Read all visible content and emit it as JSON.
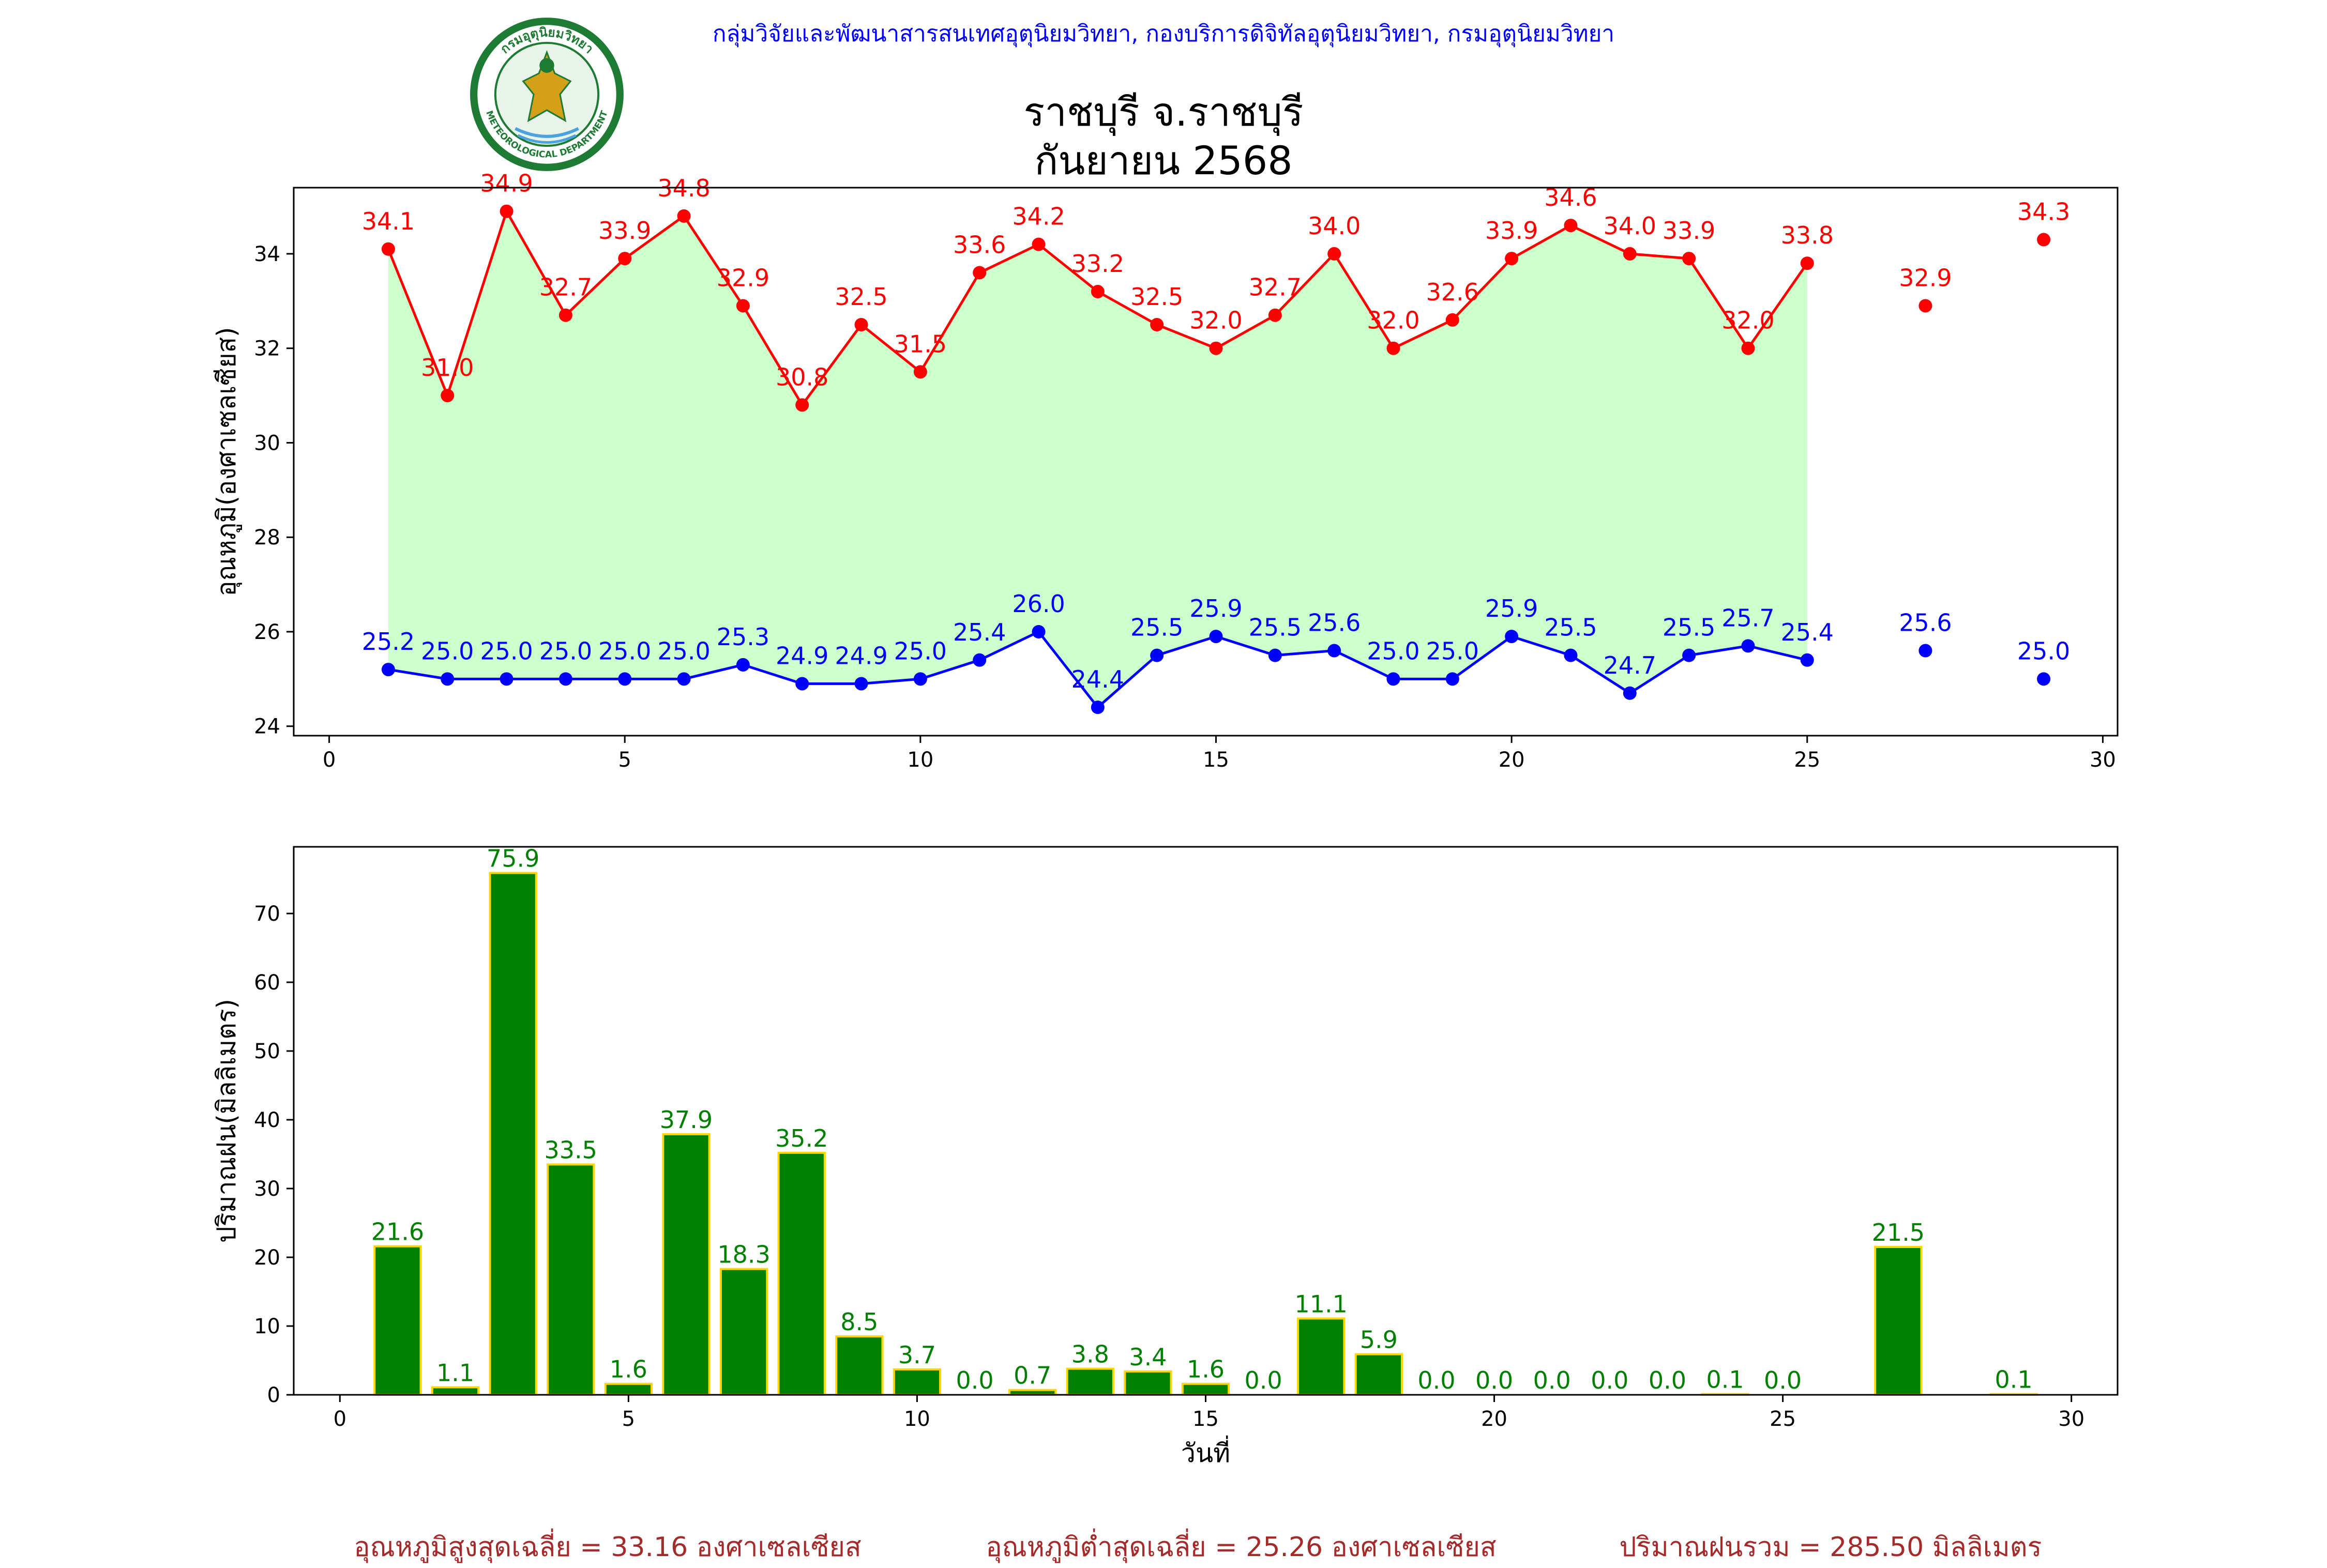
{
  "header": {
    "text": "กลุ่มวิจัยและพัฒนาสารสนเทศอุตุนิยมวิทยา, กองบริการดิจิทัลอุตุนิยมวิทยา, กรมอุตุนิยมวิทยา"
  },
  "logo": {
    "top_text": "กรมอุตุนิยมวิทยา",
    "bottom_text": "METEOROLOGICAL DEPARTMENT",
    "colors": {
      "ring": "#1e7b34",
      "inner": "#e8f4ea",
      "figure": "#d4a017"
    }
  },
  "title": {
    "line1": "ราชบุรี จ.ราชบุรี",
    "line2": "กันยายน 2568"
  },
  "footer": {
    "avg_max": "อุณหภูมิสูงสุดเฉลี่ย = 33.16 องศาเซลเซียส",
    "avg_min": "อุณหภูมิต่ำสุดเฉลี่ย = 25.26 องศาเซลเซียส",
    "total_rain": "ปริมาณฝนรวม = 285.50 มิลลิเมตร"
  },
  "chart_data": [
    {
      "type": "line",
      "ylabel": "อุณหภูมิ(องศาเซลเซียส)",
      "xlabel": "",
      "xlim": [
        -0.6,
        30.25
      ],
      "ylim": [
        23.8,
        35.4
      ],
      "xticks": [
        0,
        5,
        10,
        15,
        20,
        25,
        30
      ],
      "yticks": [
        24,
        26,
        28,
        30,
        32,
        34
      ],
      "fill_between": true,
      "series": [
        {
          "key": "max",
          "color": "#ff0000",
          "x": [
            1,
            2,
            3,
            4,
            5,
            6,
            7,
            8,
            9,
            10,
            11,
            12,
            13,
            14,
            15,
            16,
            17,
            18,
            19,
            20,
            21,
            22,
            23,
            24,
            25,
            27,
            29
          ],
          "values": [
            34.1,
            31.0,
            34.9,
            32.7,
            33.9,
            34.8,
            32.9,
            30.8,
            32.5,
            31.5,
            33.6,
            34.2,
            33.2,
            32.5,
            32.0,
            32.7,
            34.0,
            32.0,
            32.6,
            33.9,
            34.6,
            34.0,
            33.9,
            32.0,
            33.8,
            32.9,
            34.3
          ]
        },
        {
          "key": "min",
          "color": "#0000ff",
          "x": [
            1,
            2,
            3,
            4,
            5,
            6,
            7,
            8,
            9,
            10,
            11,
            12,
            13,
            14,
            15,
            16,
            17,
            18,
            19,
            20,
            21,
            22,
            23,
            24,
            25,
            27,
            29
          ],
          "values": [
            25.2,
            25.0,
            25.0,
            25.0,
            25.0,
            25.0,
            25.3,
            24.9,
            24.9,
            25.0,
            25.4,
            26.0,
            24.4,
            25.5,
            25.9,
            25.5,
            25.6,
            25.0,
            25.0,
            25.9,
            25.5,
            24.7,
            25.5,
            25.7,
            25.4,
            25.6,
            25.0
          ]
        }
      ],
      "fill_color": "#ccffcc"
    },
    {
      "type": "bar",
      "ylabel": "ปริมาณฝน(มิลลิเมตร)",
      "xlabel": "วันที่",
      "xlim": [
        -0.8,
        30.8
      ],
      "ylim": [
        0,
        79.7
      ],
      "xticks": [
        0,
        5,
        10,
        15,
        20,
        25,
        30
      ],
      "yticks": [
        0,
        10,
        20,
        30,
        40,
        50,
        60,
        70
      ],
      "bar_color": "#008000",
      "edge_color": "#ffd700",
      "label_color": "#008000",
      "x": [
        1,
        2,
        3,
        4,
        5,
        6,
        7,
        8,
        9,
        10,
        11,
        12,
        13,
        14,
        15,
        16,
        17,
        18,
        19,
        20,
        21,
        22,
        23,
        24,
        25,
        27,
        29
      ],
      "values": [
        21.6,
        1.1,
        75.9,
        33.5,
        1.6,
        37.9,
        18.3,
        35.2,
        8.5,
        3.7,
        0.0,
        0.7,
        3.8,
        3.4,
        1.6,
        0.0,
        11.1,
        5.9,
        0.0,
        0.0,
        0.0,
        0.0,
        0.0,
        0.1,
        0.0,
        21.5,
        0.1
      ]
    }
  ]
}
